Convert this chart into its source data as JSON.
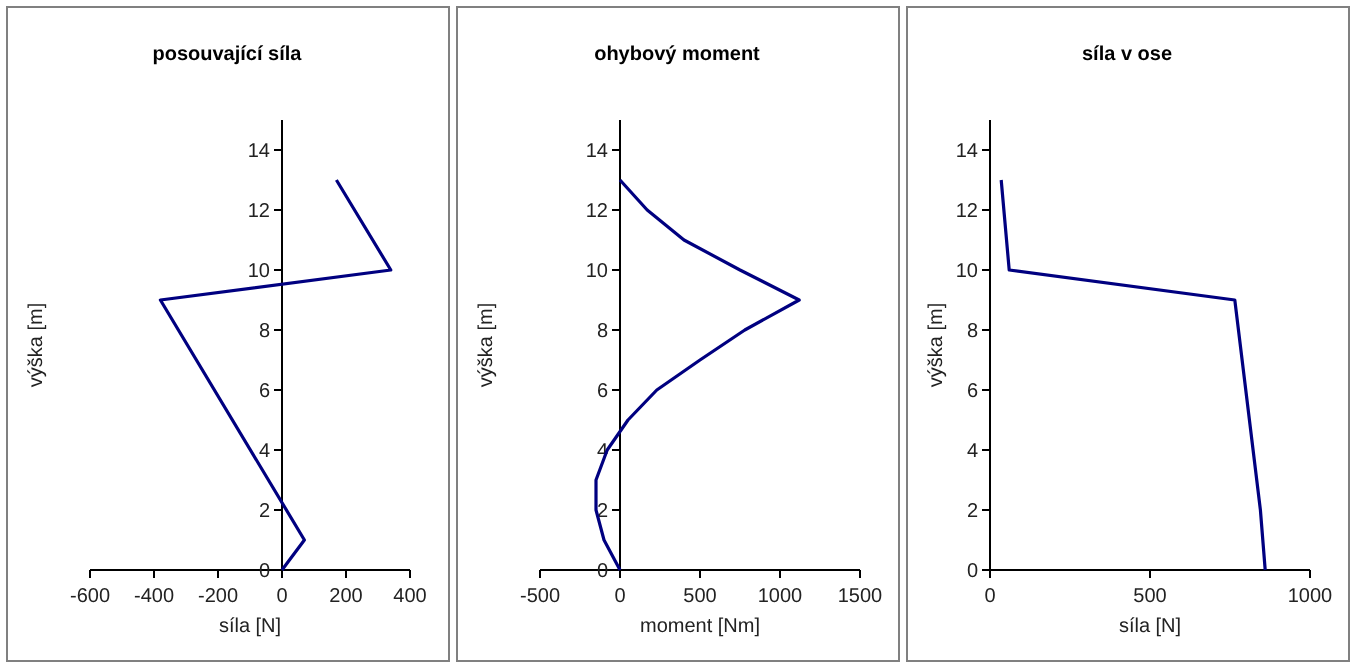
{
  "chart_data": [
    {
      "type": "line",
      "title": "posouvající síla",
      "xlabel": "síla [N]",
      "ylabel": "výška [m]",
      "xlim": [
        -600,
        400
      ],
      "xticks": [
        -600,
        -400,
        -200,
        0,
        200,
        400
      ],
      "ylim": [
        0,
        15
      ],
      "yticks": [
        0,
        2,
        4,
        6,
        8,
        10,
        12,
        14
      ],
      "series": [
        {
          "color": "#000080",
          "x": [
            0,
            70,
            -380,
            340,
            170
          ],
          "values": [
            0,
            1,
            9,
            10,
            13
          ]
        }
      ]
    },
    {
      "type": "line",
      "title": "ohybový moment",
      "xlabel": "moment [Nm]",
      "ylabel": "výška [m]",
      "xlim": [
        -500,
        1500
      ],
      "xticks": [
        -500,
        0,
        500,
        1000,
        1500
      ],
      "ylim": [
        0,
        15
      ],
      "yticks": [
        0,
        2,
        4,
        6,
        8,
        10,
        12,
        14
      ],
      "series": [
        {
          "color": "#000080",
          "x": [
            0,
            -100,
            -150,
            -150,
            -80,
            50,
            230,
            500,
            780,
            1120,
            750,
            400,
            170,
            0
          ],
          "values": [
            0,
            1,
            2,
            3,
            4,
            5,
            6,
            7,
            8,
            9,
            10,
            11,
            12,
            13
          ]
        }
      ]
    },
    {
      "type": "line",
      "title": "síla v ose",
      "xlabel": "síla [N]",
      "ylabel": "výška [m]",
      "xlim": [
        0,
        1000
      ],
      "xticks": [
        0,
        500,
        1000
      ],
      "ylim": [
        0,
        15
      ],
      "yticks": [
        0,
        2,
        4,
        6,
        8,
        10,
        12,
        14
      ],
      "series": [
        {
          "color": "#000080",
          "x": [
            860,
            845,
            765,
            60,
            35
          ],
          "values": [
            0,
            2,
            9,
            10,
            13
          ]
        }
      ]
    }
  ]
}
